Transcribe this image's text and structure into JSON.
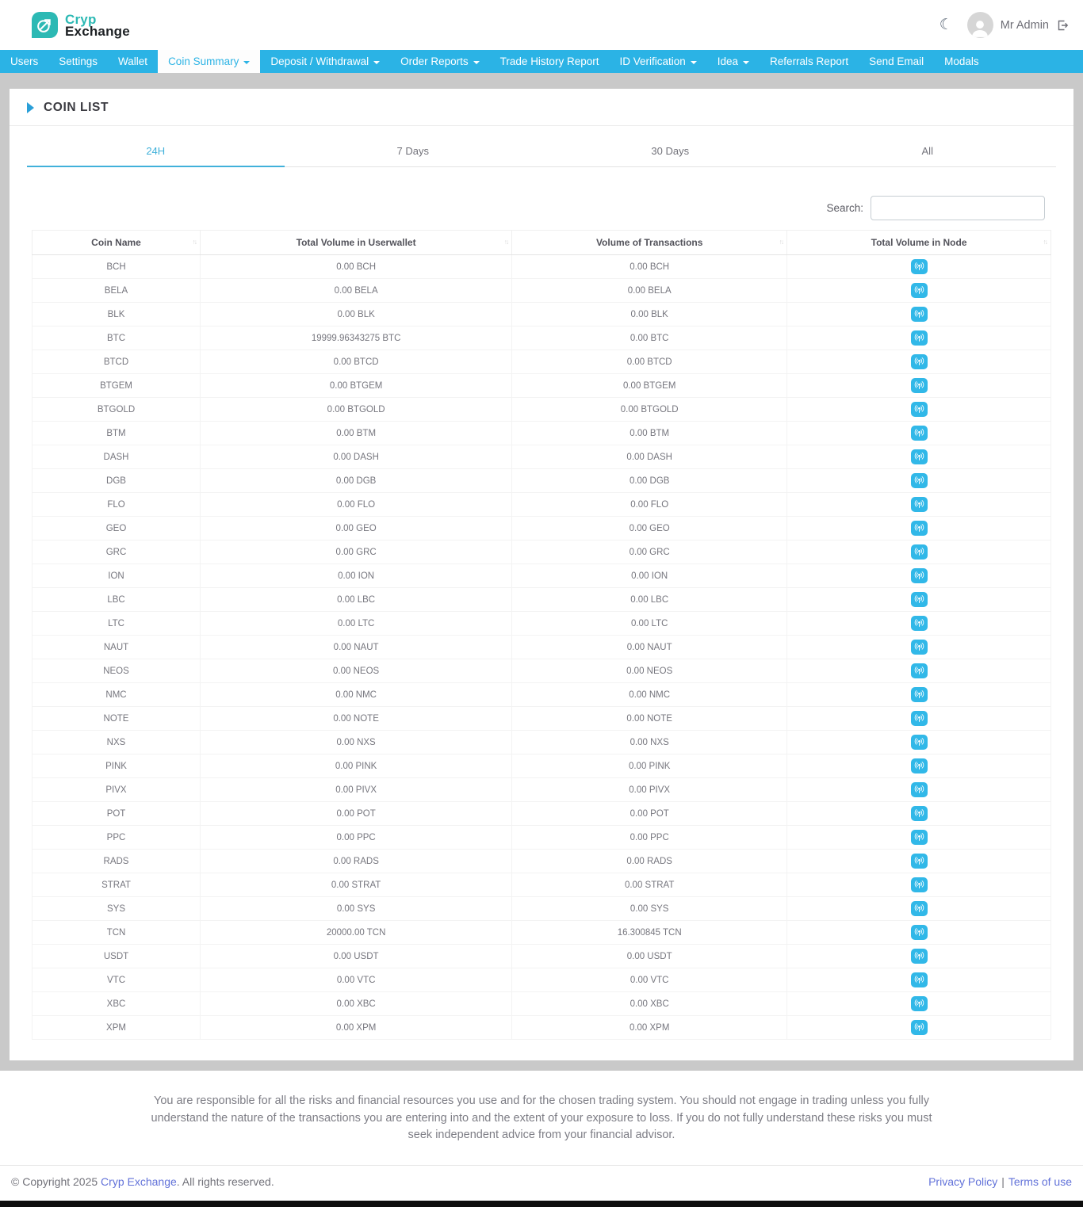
{
  "colors": {
    "accent": "#2bb3e5",
    "brand_teal": "#2cb9b4",
    "link_blue": "#6272d9"
  },
  "brand": {
    "name_top": "Cryp",
    "name_bottom": "Exchange"
  },
  "header": {
    "user_name": "Mr Admin"
  },
  "nav": {
    "items": [
      {
        "label": "Users",
        "caret": false,
        "active": false
      },
      {
        "label": "Settings",
        "caret": false,
        "active": false
      },
      {
        "label": "Wallet",
        "caret": false,
        "active": false
      },
      {
        "label": "Coin Summary",
        "caret": true,
        "active": true
      },
      {
        "label": "Deposit / Withdrawal",
        "caret": true,
        "active": false
      },
      {
        "label": "Order Reports",
        "caret": true,
        "active": false
      },
      {
        "label": "Trade History Report",
        "caret": false,
        "active": false
      },
      {
        "label": "ID Verification",
        "caret": true,
        "active": false
      },
      {
        "label": "Idea",
        "caret": true,
        "active": false
      },
      {
        "label": "Referrals Report",
        "caret": false,
        "active": false
      },
      {
        "label": "Send Email",
        "caret": false,
        "active": false
      },
      {
        "label": "Modals",
        "caret": false,
        "active": false
      }
    ]
  },
  "page": {
    "title": "COIN LIST"
  },
  "tabs": [
    {
      "label": "24H",
      "active": true
    },
    {
      "label": "7 Days",
      "active": false
    },
    {
      "label": "30 Days",
      "active": false
    },
    {
      "label": "All",
      "active": false
    }
  ],
  "search": {
    "label": "Search:",
    "value": ""
  },
  "table": {
    "columns": [
      "Coin Name",
      "Total Volume in Userwallet",
      "Volume of Transactions",
      "Total Volume in Node"
    ],
    "node_icon": "podcast-icon",
    "rows": [
      {
        "coin": "BCH",
        "userwallet": "0.00 BCH",
        "transactions": "0.00 BCH"
      },
      {
        "coin": "BELA",
        "userwallet": "0.00 BELA",
        "transactions": "0.00 BELA"
      },
      {
        "coin": "BLK",
        "userwallet": "0.00 BLK",
        "transactions": "0.00 BLK"
      },
      {
        "coin": "BTC",
        "userwallet": "19999.96343275 BTC",
        "transactions": "0.00 BTC"
      },
      {
        "coin": "BTCD",
        "userwallet": "0.00 BTCD",
        "transactions": "0.00 BTCD"
      },
      {
        "coin": "BTGEM",
        "userwallet": "0.00 BTGEM",
        "transactions": "0.00 BTGEM"
      },
      {
        "coin": "BTGOLD",
        "userwallet": "0.00 BTGOLD",
        "transactions": "0.00 BTGOLD"
      },
      {
        "coin": "BTM",
        "userwallet": "0.00 BTM",
        "transactions": "0.00 BTM"
      },
      {
        "coin": "DASH",
        "userwallet": "0.00 DASH",
        "transactions": "0.00 DASH"
      },
      {
        "coin": "DGB",
        "userwallet": "0.00 DGB",
        "transactions": "0.00 DGB"
      },
      {
        "coin": "FLO",
        "userwallet": "0.00 FLO",
        "transactions": "0.00 FLO"
      },
      {
        "coin": "GEO",
        "userwallet": "0.00 GEO",
        "transactions": "0.00 GEO"
      },
      {
        "coin": "GRC",
        "userwallet": "0.00 GRC",
        "transactions": "0.00 GRC"
      },
      {
        "coin": "ION",
        "userwallet": "0.00 ION",
        "transactions": "0.00 ION"
      },
      {
        "coin": "LBC",
        "userwallet": "0.00 LBC",
        "transactions": "0.00 LBC"
      },
      {
        "coin": "LTC",
        "userwallet": "0.00 LTC",
        "transactions": "0.00 LTC"
      },
      {
        "coin": "NAUT",
        "userwallet": "0.00 NAUT",
        "transactions": "0.00 NAUT"
      },
      {
        "coin": "NEOS",
        "userwallet": "0.00 NEOS",
        "transactions": "0.00 NEOS"
      },
      {
        "coin": "NMC",
        "userwallet": "0.00 NMC",
        "transactions": "0.00 NMC"
      },
      {
        "coin": "NOTE",
        "userwallet": "0.00 NOTE",
        "transactions": "0.00 NOTE"
      },
      {
        "coin": "NXS",
        "userwallet": "0.00 NXS",
        "transactions": "0.00 NXS"
      },
      {
        "coin": "PINK",
        "userwallet": "0.00 PINK",
        "transactions": "0.00 PINK"
      },
      {
        "coin": "PIVX",
        "userwallet": "0.00 PIVX",
        "transactions": "0.00 PIVX"
      },
      {
        "coin": "POT",
        "userwallet": "0.00 POT",
        "transactions": "0.00 POT"
      },
      {
        "coin": "PPC",
        "userwallet": "0.00 PPC",
        "transactions": "0.00 PPC"
      },
      {
        "coin": "RADS",
        "userwallet": "0.00 RADS",
        "transactions": "0.00 RADS"
      },
      {
        "coin": "STRAT",
        "userwallet": "0.00 STRAT",
        "transactions": "0.00 STRAT"
      },
      {
        "coin": "SYS",
        "userwallet": "0.00 SYS",
        "transactions": "0.00 SYS"
      },
      {
        "coin": "TCN",
        "userwallet": "20000.00 TCN",
        "transactions": "16.300845 TCN"
      },
      {
        "coin": "USDT",
        "userwallet": "0.00 USDT",
        "transactions": "0.00 USDT"
      },
      {
        "coin": "VTC",
        "userwallet": "0.00 VTC",
        "transactions": "0.00 VTC"
      },
      {
        "coin": "XBC",
        "userwallet": "0.00 XBC",
        "transactions": "0.00 XBC"
      },
      {
        "coin": "XPM",
        "userwallet": "0.00 XPM",
        "transactions": "0.00 XPM"
      }
    ]
  },
  "footer": {
    "disclaimer": "You are responsible for all the risks and financial resources you use and for the chosen trading system. You should not engage in trading unless you fully understand the nature of the transactions you are entering into and the extent of your exposure to loss. If you do not fully understand these risks you must seek independent advice from your financial advisor.",
    "copyright_prefix": "© Copyright 2025 ",
    "copyright_link": "Cryp Exchange",
    "copyright_suffix": ". All rights reserved.",
    "privacy_policy": "Privacy Policy",
    "separator": "|",
    "terms_of_use": "Terms of use"
  }
}
